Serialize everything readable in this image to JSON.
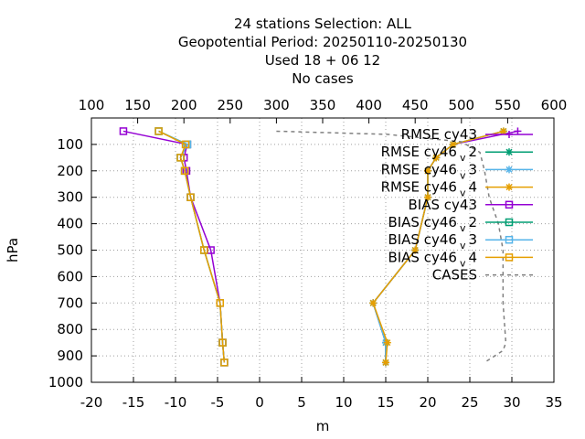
{
  "chart_data": {
    "type": "line",
    "title_lines": [
      "24 stations Selection: ALL",
      "Geopotential  Period: 20250110-20250130",
      "Used  18 + 06 12",
      "No cases"
    ],
    "xlabel": "m",
    "ylabel": "hPa",
    "x_range": [
      -20,
      35
    ],
    "x_ticks": [
      "-20",
      "-15",
      "-10",
      "-5",
      "0",
      "5",
      "10",
      "15",
      "20",
      "25",
      "30",
      "35"
    ],
    "x2_range": [
      100,
      600
    ],
    "x2_ticks": [
      "100",
      "150",
      "200",
      "250",
      "300",
      "350",
      "400",
      "450",
      "500",
      "550",
      "600"
    ],
    "y_range": [
      1000,
      0
    ],
    "y_ticks": [
      "100",
      "200",
      "300",
      "400",
      "500",
      "600",
      "700",
      "800",
      "900",
      "1000"
    ],
    "grid": true,
    "legend_placement": "top-right",
    "levels": [
      50,
      100,
      150,
      200,
      300,
      500,
      700,
      850,
      925
    ],
    "series": [
      {
        "name": "RMSE cy43",
        "label_main": "RMSE cy43",
        "label_sub": "",
        "label_tail": "",
        "kind": "rmse",
        "color": "#9400d3",
        "marker": "plus",
        "values": [
          30.7,
          23,
          21,
          20,
          20,
          18.5,
          13.5,
          15,
          15
        ]
      },
      {
        "name": "RMSE cy46_v2",
        "label_main": "RMSE cy46",
        "label_sub": "v",
        "label_tail": "2",
        "kind": "rmse",
        "color": "#009e73",
        "marker": "star",
        "values": [
          29,
          23,
          21,
          20,
          20,
          18.5,
          13.5,
          15,
          15
        ]
      },
      {
        "name": "RMSE cy46_v3",
        "label_main": "RMSE cy46",
        "label_sub": "v",
        "label_tail": "3",
        "kind": "rmse",
        "color": "#56b4e9",
        "marker": "star",
        "values": [
          29,
          23,
          21,
          20,
          20,
          18.5,
          13.5,
          15,
          15
        ]
      },
      {
        "name": "RMSE cy46_v4",
        "label_main": "RMSE cy46",
        "label_sub": "v",
        "label_tail": "4",
        "kind": "rmse",
        "color": "#e69f00",
        "marker": "star",
        "values": [
          29,
          23,
          21,
          20,
          20,
          18.5,
          13.5,
          15.2,
          15
        ]
      },
      {
        "name": "BIAS cy43",
        "label_main": "BIAS cy43",
        "label_sub": "",
        "label_tail": "",
        "kind": "bias",
        "color": "#9400d3",
        "marker": "square",
        "values": [
          -16.2,
          -8.6,
          -9,
          -8.7,
          -8.2,
          -5.8,
          -4.7,
          -4.4,
          -4.2
        ]
      },
      {
        "name": "BIAS cy46_v2",
        "label_main": "BIAS cy46",
        "label_sub": "v",
        "label_tail": "2",
        "kind": "bias",
        "color": "#009e73",
        "marker": "square",
        "values": [
          -12,
          -8.6,
          -9.4,
          -8.9,
          -8.2,
          -6.6,
          -4.7,
          -4.4,
          -4.2
        ]
      },
      {
        "name": "BIAS cy46_v3",
        "label_main": "BIAS cy46",
        "label_sub": "v",
        "label_tail": "3",
        "kind": "bias",
        "color": "#56b4e9",
        "marker": "square",
        "values": [
          -12,
          -8.6,
          -9.4,
          -8.9,
          -8.2,
          -6.6,
          -4.7,
          -4.4,
          -4.2
        ]
      },
      {
        "name": "BIAS cy46_v4",
        "label_main": "BIAS cy46",
        "label_sub": "v",
        "label_tail": "4",
        "kind": "bias",
        "color": "#e69f00",
        "marker": "square",
        "values": [
          -12,
          -8.8,
          -9.4,
          -8.9,
          -8.2,
          -6.6,
          -4.7,
          -4.4,
          -4.2
        ]
      },
      {
        "name": "CASES",
        "label_main": "CASES",
        "label_sub": "",
        "label_tail": "",
        "kind": "cases",
        "color": "#808080",
        "marker": "none",
        "values_top_axis": [
          300,
          420,
          500,
          520,
          525,
          530,
          540,
          545,
          545,
          545,
          548,
          545,
          525
        ],
        "levels": [
          50,
          62,
          90,
          130,
          200,
          300,
          400,
          500,
          600,
          700,
          850,
          880,
          925
        ]
      }
    ]
  }
}
